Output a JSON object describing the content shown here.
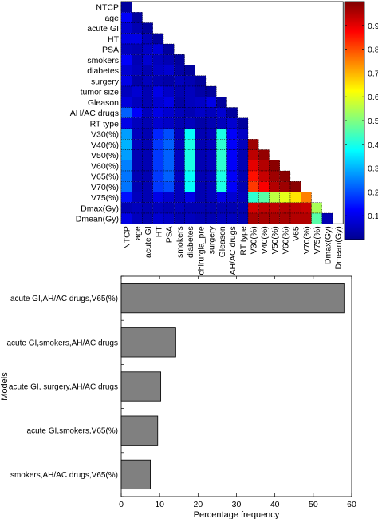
{
  "chart_data": [
    {
      "type": "heatmap",
      "title": "",
      "xlabel": "",
      "ylabel": "",
      "row_labels": [
        "NTCP",
        "age",
        "acute GI",
        "HT",
        "PSA",
        "smokers",
        "diabetes",
        "surgery",
        "tumor size",
        "Gleason",
        "AH/AC drugs",
        "RT type",
        "V30(%)",
        "V40(%)",
        "V50(%)",
        "V60(%)",
        "V65(%)",
        "V70(%)",
        "V75(%)",
        "Dmax(Gy)",
        "Dmean(Gy)"
      ],
      "col_labels": [
        "NTCP",
        "age",
        "acute GI",
        "HT",
        "PSA",
        "smokers",
        "diabetes",
        "chirurgia_pre",
        "surgery",
        "Gleason",
        "AH/AC drugs",
        "RT type",
        "V30(%)",
        "V40(%)",
        "V50(%)",
        "V60(%)",
        "V65",
        "V70(%)",
        "V75(%)",
        "Dmax(Gy)",
        "Dmean(Gy)"
      ],
      "lower_triangle": true,
      "values": [
        [
          0.03
        ],
        [
          0.12,
          0.03
        ],
        [
          0.08,
          0.05,
          0.03
        ],
        [
          0.1,
          0.1,
          0.06,
          0.03
        ],
        [
          0.06,
          0.05,
          0.07,
          0.09,
          0.03
        ],
        [
          0.12,
          0.05,
          0.08,
          0.06,
          0.05,
          0.03
        ],
        [
          0.08,
          0.06,
          0.05,
          0.07,
          0.08,
          0.04,
          0.03
        ],
        [
          0.1,
          0.04,
          0.06,
          0.05,
          0.04,
          0.06,
          0.05,
          0.03
        ],
        [
          0.06,
          0.08,
          0.05,
          0.1,
          0.07,
          0.05,
          0.06,
          0.04,
          0.03
        ],
        [
          0.09,
          0.06,
          0.05,
          0.08,
          0.1,
          0.04,
          0.06,
          0.07,
          0.1,
          0.03
        ],
        [
          0.22,
          0.12,
          0.06,
          0.1,
          0.08,
          0.06,
          0.05,
          0.07,
          0.06,
          0.08,
          0.03
        ],
        [
          0.1,
          0.06,
          0.05,
          0.08,
          0.07,
          0.05,
          0.06,
          0.04,
          0.05,
          0.06,
          0.08,
          0.03
        ],
        [
          0.28,
          0.06,
          0.05,
          0.16,
          0.2,
          0.06,
          0.38,
          0.05,
          0.06,
          0.4,
          0.12,
          0.07
        ],
        [
          0.3,
          0.06,
          0.05,
          0.18,
          0.22,
          0.06,
          0.4,
          0.05,
          0.06,
          0.42,
          0.12,
          0.06,
          0.97
        ],
        [
          0.28,
          0.05,
          0.05,
          0.18,
          0.22,
          0.06,
          0.4,
          0.05,
          0.06,
          0.42,
          0.12,
          0.05,
          0.94,
          0.98
        ],
        [
          0.25,
          0.05,
          0.05,
          0.18,
          0.22,
          0.06,
          0.4,
          0.05,
          0.06,
          0.42,
          0.12,
          0.05,
          0.9,
          0.95,
          0.99
        ],
        [
          0.24,
          0.05,
          0.05,
          0.18,
          0.22,
          0.06,
          0.38,
          0.05,
          0.06,
          0.4,
          0.12,
          0.05,
          0.86,
          0.93,
          0.97,
          0.99
        ],
        [
          0.24,
          0.05,
          0.05,
          0.18,
          0.2,
          0.06,
          0.38,
          0.05,
          0.06,
          0.4,
          0.12,
          0.05,
          0.82,
          0.88,
          0.95,
          0.97,
          0.99
        ],
        [
          0.14,
          0.06,
          0.05,
          0.1,
          0.08,
          0.06,
          0.1,
          0.05,
          0.06,
          0.1,
          0.08,
          0.06,
          0.42,
          0.46,
          0.56,
          0.6,
          0.65,
          0.75
        ],
        [
          0.05,
          0.06,
          0.05,
          0.06,
          0.05,
          0.06,
          0.05,
          0.05,
          0.05,
          0.05,
          0.05,
          0.05,
          0.92,
          0.94,
          0.94,
          0.95,
          0.94,
          0.93,
          0.54
        ],
        [
          0.1,
          0.06,
          0.05,
          0.08,
          0.07,
          0.05,
          0.06,
          0.05,
          0.05,
          0.06,
          0.06,
          0.05,
          0.96,
          0.96,
          0.96,
          0.96,
          0.95,
          0.95,
          0.46,
          0.05
        ]
      ],
      "colorbar": {
        "colormap": "jet",
        "range": [
          0,
          1
        ],
        "ticks": [
          0.1,
          0.2,
          0.3,
          0.4,
          0.5,
          0.6,
          0.7,
          0.8,
          0.9
        ]
      }
    },
    {
      "type": "bar",
      "orientation": "horizontal",
      "title": "",
      "categories": [
        "acute GI,AH/AC drugs,V65(%)",
        "acute GI,smokers,AH/AC drugs",
        "acute GI, surgery,AH/AC drugs",
        "acute GI,smokers,V65(%)",
        "smokers,AH/AC drugs,V65(%)"
      ],
      "values": [
        58,
        14.2,
        10.3,
        9.5,
        7.6
      ],
      "xlabel": "Percentage frequency",
      "ylabel": "Models",
      "xlim": [
        0,
        60
      ],
      "xticks": [
        0,
        10,
        20,
        30,
        40,
        50,
        60
      ],
      "bar_color": "#808080"
    }
  ]
}
